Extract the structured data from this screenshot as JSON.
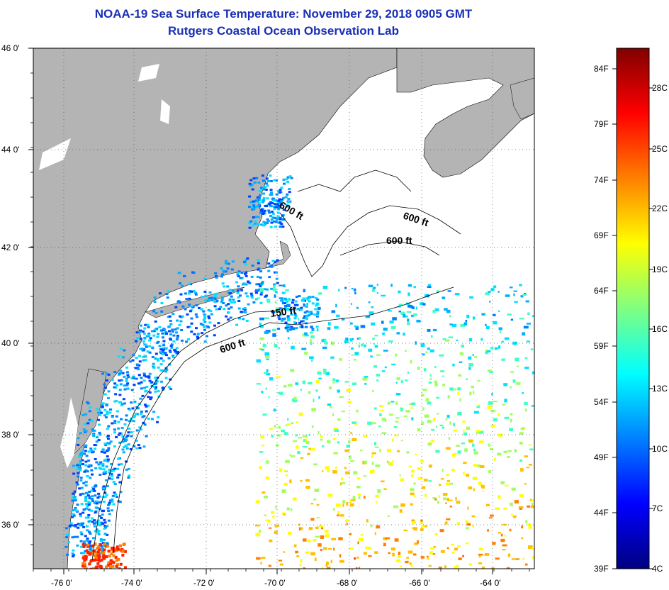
{
  "title_line1": "NOAA-19 Sea Surface Temperature:  November 29, 2018 0905 GMT",
  "title_line2": "Rutgers Coastal Ocean Observation Lab",
  "lat_labels": [
    "46 0'",
    "44 0'",
    "42 0'",
    "40 0'",
    "38 0'",
    "36 0'"
  ],
  "lon_labels": [
    "-76 0'",
    "-74 0'",
    "-72 0'",
    "-70 0'",
    "-68 0'",
    "-66 0'",
    "-64 0'"
  ],
  "contour_labels": [
    "600 ft",
    "600 ft",
    "600 ft",
    "150 ft",
    "600 ft"
  ],
  "colorbar": {
    "fahrenheit": [
      "84F",
      "79F",
      "74F",
      "69F",
      "64F",
      "59F",
      "54F",
      "49F",
      "44F",
      "39F"
    ],
    "celsius": [
      "28C",
      "25C",
      "22C",
      "19C",
      "16C",
      "13C",
      "10C",
      "7C",
      "4C"
    ],
    "colors": [
      "#000080",
      "#0000ff",
      "#0080ff",
      "#00ffff",
      "#80ff80",
      "#ffff00",
      "#ff8000",
      "#ff0000",
      "#800000"
    ]
  },
  "colors": {
    "land": "#b4b4b4",
    "ocean_no_data": "#ffffff",
    "title": "#1a2fb5"
  }
}
